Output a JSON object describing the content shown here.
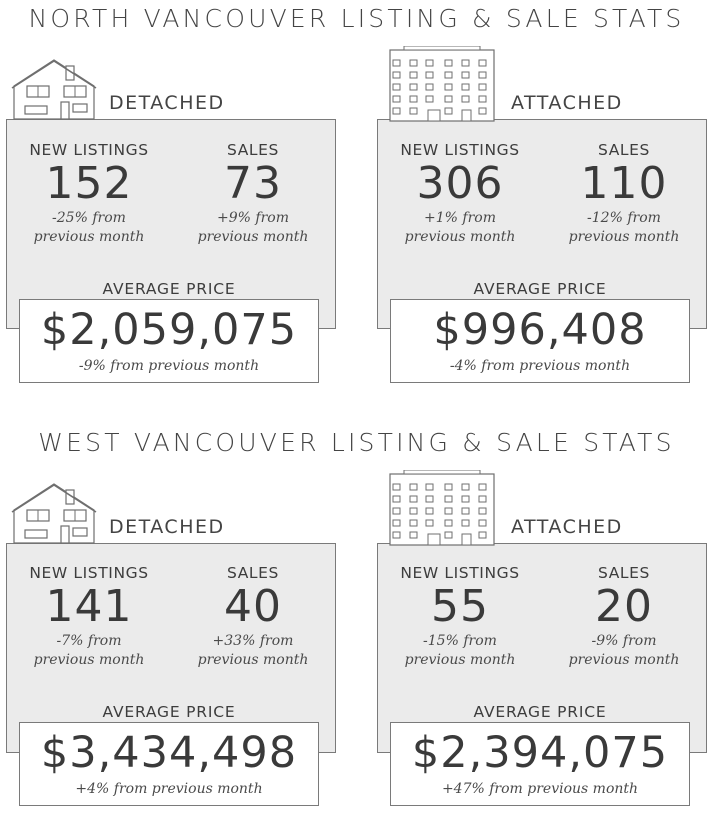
{
  "sections": [
    {
      "title": "NORTH VANCOUVER LISTING & SALE STATS",
      "cards": [
        {
          "type": "DETACHED",
          "icon": "house-icon",
          "new_listings": {
            "label": "NEW LISTINGS",
            "value": "152",
            "change_1": "-25% from",
            "change_2": "previous month"
          },
          "sales": {
            "label": "SALES",
            "value": "73",
            "change_1": "+9% from",
            "change_2": "previous month"
          },
          "avg_price": {
            "label": "AVERAGE PRICE",
            "value": "$2,059,075",
            "change": "-9% from previous month"
          }
        },
        {
          "type": "ATTACHED",
          "icon": "apartment-building-icon",
          "new_listings": {
            "label": "NEW LISTINGS",
            "value": "306",
            "change_1": "+1% from",
            "change_2": "previous month"
          },
          "sales": {
            "label": "SALES",
            "value": "110",
            "change_1": "-12% from",
            "change_2": "previous month"
          },
          "avg_price": {
            "label": "AVERAGE PRICE",
            "value": "$996,408",
            "change": "-4% from previous month"
          }
        }
      ]
    },
    {
      "title": "WEST VANCOUVER LISTING & SALE STATS",
      "cards": [
        {
          "type": "DETACHED",
          "icon": "house-icon",
          "new_listings": {
            "label": "NEW LISTINGS",
            "value": "141",
            "change_1": "-7% from",
            "change_2": "previous month"
          },
          "sales": {
            "label": "SALES",
            "value": "40",
            "change_1": "+33% from",
            "change_2": "previous month"
          },
          "avg_price": {
            "label": "AVERAGE PRICE",
            "value": "$3,434,498",
            "change": "+4% from previous month"
          }
        },
        {
          "type": "ATTACHED",
          "icon": "apartment-building-icon",
          "new_listings": {
            "label": "NEW LISTINGS",
            "value": "55",
            "change_1": "-15% from",
            "change_2": "previous month"
          },
          "sales": {
            "label": "SALES",
            "value": "20",
            "change_1": "-9% from",
            "change_2": "previous month"
          },
          "avg_price": {
            "label": "AVERAGE PRICE",
            "value": "$2,394,075",
            "change": "+47% from previous month"
          }
        }
      ]
    }
  ]
}
